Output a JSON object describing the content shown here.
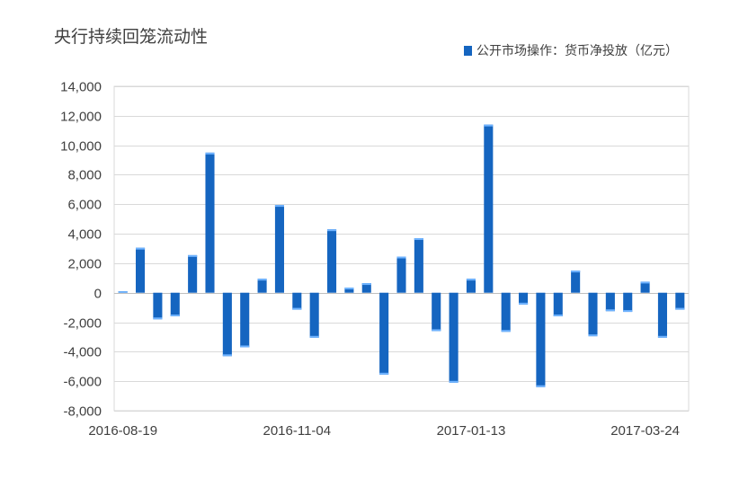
{
  "chart_data": {
    "type": "bar",
    "title": "央行持续回笼流动性",
    "xlabel": "",
    "ylabel": "",
    "ylim": [
      -8000,
      14000
    ],
    "yticks": [
      14000,
      12000,
      10000,
      8000,
      6000,
      4000,
      2000,
      0,
      -2000,
      -4000,
      -6000,
      -8000
    ],
    "ytick_labels": [
      "14,000",
      "12,000",
      "10,000",
      "8,000",
      "6,000",
      "4,000",
      "2,000",
      "0",
      "-2,000",
      "-4,000",
      "-6,000",
      "-8,000"
    ],
    "xtick_labels": [
      {
        "label": "2016-08-19",
        "index": 0
      },
      {
        "label": "2016-11-04",
        "index": 10
      },
      {
        "label": "2017-01-13",
        "index": 20
      },
      {
        "label": "2017-03-24",
        "index": 30
      }
    ],
    "grid": true,
    "legend_position": "top-right",
    "series": [
      {
        "name": "公开市场操作：货币净投放（亿元）",
        "color": "#1565c0",
        "values": [
          100,
          3050,
          -1800,
          -1600,
          2550,
          9500,
          -4300,
          -3700,
          950,
          5950,
          -1150,
          -3050,
          4300,
          350,
          650,
          -5550,
          2450,
          3700,
          -2600,
          -6100,
          950,
          11400,
          -2650,
          -800,
          -6400,
          -1600,
          1500,
          -2950,
          -1250,
          -1300,
          750,
          -3050,
          -1150
        ]
      }
    ]
  }
}
